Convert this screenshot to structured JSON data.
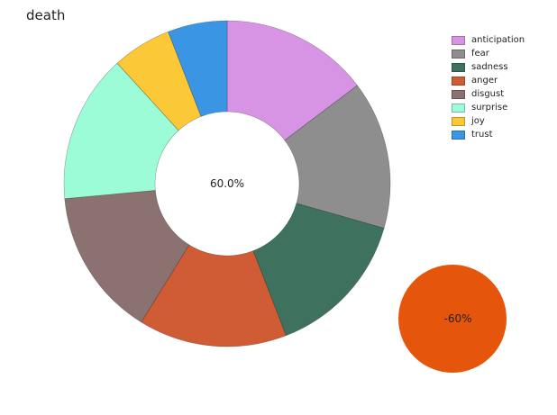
{
  "chart_data": {
    "type": "pie",
    "title": "death",
    "series": [
      {
        "name": "anticipation",
        "value": 12.5,
        "color": "#d894e4"
      },
      {
        "name": "fear",
        "value": 12.5,
        "color": "#8e8e8e"
      },
      {
        "name": "sadness",
        "value": 12.5,
        "color": "#3e725f"
      },
      {
        "name": "anger",
        "value": 12.5,
        "color": "#cf5c35"
      },
      {
        "name": "disgust",
        "value": 12.5,
        "color": "#8b716f"
      },
      {
        "name": "surprise",
        "value": 12.5,
        "color": "#9cfcd8"
      },
      {
        "name": "joy",
        "value": 5.0,
        "color": "#fbc837"
      },
      {
        "name": "trust",
        "value": 5.0,
        "color": "#3a95e5"
      }
    ],
    "center_label": "60.0%",
    "indicator": {
      "label": "-60%",
      "color": "#e5560c"
    },
    "legend_position": "top-right"
  }
}
